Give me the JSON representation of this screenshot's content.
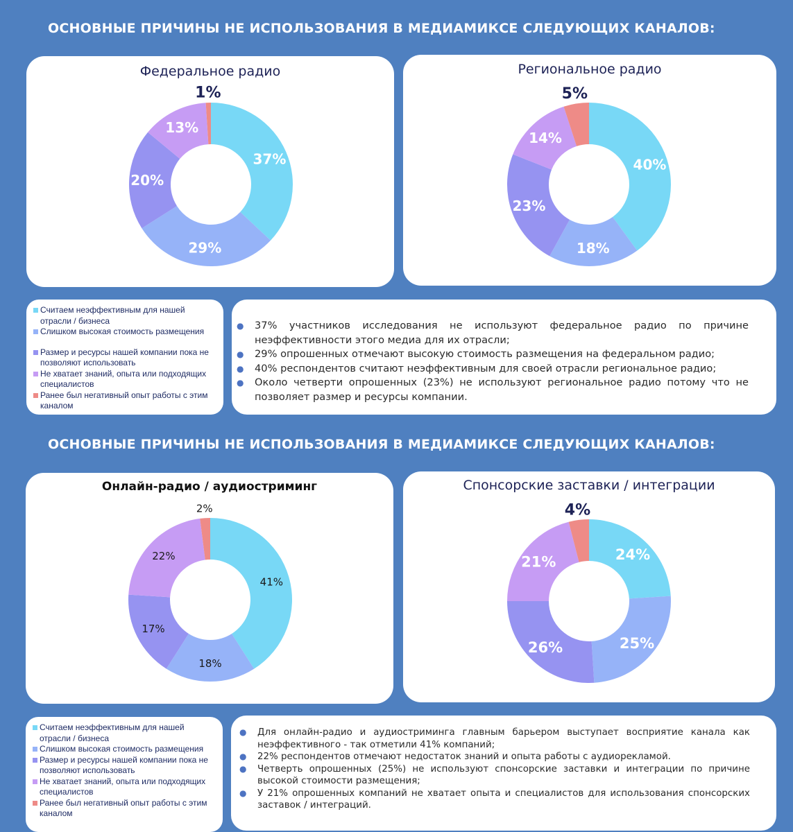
{
  "section1": {
    "title": "ОСНОВНЫЕ ПРИЧИНЫ НЕ ИСПОЛЬЗОВАНИЯ В МЕДИАМИКСЕ СЛЕДУЮЩИХ КАНАЛОВ:"
  },
  "section2": {
    "title": "ОСНОВНЫЕ ПРИЧИНЫ НЕ ИСПОЛЬЗОВАНИЯ В МЕДИАМИКСЕ СЛЕДУЮЩИХ КАНАЛОВ:"
  },
  "colors": {
    "ineffective": "#78d8f6",
    "high_cost": "#96b3f8",
    "resources": "#9693f1",
    "no_knowledge": "#c69cf4",
    "negative_experience": "#ee8b87"
  },
  "chart_data": [
    {
      "type": "pie",
      "title": "Федеральное радио",
      "categories": [
        "Считаем неэффективным для нашей отрасли / бизнеса",
        "Слишком высокая стоимость размещения",
        "Размер и ресурсы нашей компании пока не позволяют использовать",
        "Не хватает знаний, опыта или подходящих специалистов",
        "Ранее был негативный опыт работы с этим каналом"
      ],
      "values": [
        37,
        29,
        20,
        13,
        1
      ],
      "labels": [
        "37%",
        "29%",
        "20%",
        "13%",
        "1%"
      ]
    },
    {
      "type": "pie",
      "title": "Региональное радио",
      "categories": [
        "Считаем неэффективным для нашей отрасли / бизнеса",
        "Слишком высокая стоимость размещения",
        "Размер и ресурсы нашей компании пока не позволяют использовать",
        "Не хватает знаний, опыта или подходящих специалистов",
        "Ранее был негативный опыт работы с этим каналом"
      ],
      "values": [
        40,
        18,
        23,
        14,
        5
      ],
      "labels": [
        "40%",
        "18%",
        "23%",
        "14%",
        "5%"
      ]
    },
    {
      "type": "pie",
      "title": "Онлайн-радио / аудиостриминг",
      "categories": [
        "Считаем неэффективным для нашей отрасли / бизнеса",
        "Слишком высокая стоимость размещения",
        "Размер и ресурсы нашей компании пока не позволяют использовать",
        "Не хватает знаний, опыта или подходящих специалистов",
        "Ранее был негативный опыт работы с этим каналом"
      ],
      "values": [
        41,
        18,
        17,
        22,
        2
      ],
      "labels": [
        "41%",
        "18%",
        "17%",
        "22%",
        "2%"
      ]
    },
    {
      "type": "pie",
      "title": "Спонсорские заставки / интеграции",
      "categories": [
        "Считаем неэффективным для нашей отрасли / бизнеса",
        "Слишком высокая стоимость размещения",
        "Размер и ресурсы нашей компании пока не позволяют использовать",
        "Не хватает знаний, опыта или подходящих специалистов",
        "Ранее был негативный опыт работы с этим каналом"
      ],
      "values": [
        24,
        25,
        26,
        21,
        4
      ],
      "labels": [
        "24%",
        "25%",
        "26%",
        "21%",
        "4%"
      ]
    }
  ],
  "legend1": {
    "items": [
      "Считаем неэффективным для нашей отрасли / бизнеса",
      "Слишком высокая стоимость размещения",
      "Размер и ресурсы нашей компании пока не позволяют использовать",
      "Не хватает знаний, опыта или подходящих специалистов",
      "Ранее был негативный опыт работы с этим каналом"
    ]
  },
  "legend2": {
    "items": [
      "Считаем неэффективным для нашей отрасли / бизнеса",
      "Слишком высокая стоимость размещения",
      "Размер и ресурсы нашей компании пока не позволяют использовать",
      "Не хватает знаний, опыта или подходящих специалистов",
      "Ранее был негативный опыт работы с этим каналом"
    ]
  },
  "notes1": [
    "37% участников исследования не используют федеральное радио по причине неэффективности этого медиа для их отрасли;",
    "29% опрошенных отмечают высокую стоимость размещения на федеральном радио;",
    "40% респондентов считают неэффективным для своей отрасли региональное радио;",
    "Около четверти опрошенных (23%) не используют региональное радио потому что не позволяет размер и ресурсы компании."
  ],
  "notes2": [
    "Для онлайн-радио и аудиостриминга главным барьером выступает восприятие канала как неэффективного - так отметили 41% компаний;",
    "22% респондентов отмечают недостаток знаний и опыта работы с аудиорекламой.",
    "Четверть опрошенных (25%) не используют спонсорские заставки и интеграции по причине высокой стоимости размещения;",
    "У 21% опрошенных компаний не хватает опыта и специалистов для использования спонсорских заставок / интеграций."
  ]
}
